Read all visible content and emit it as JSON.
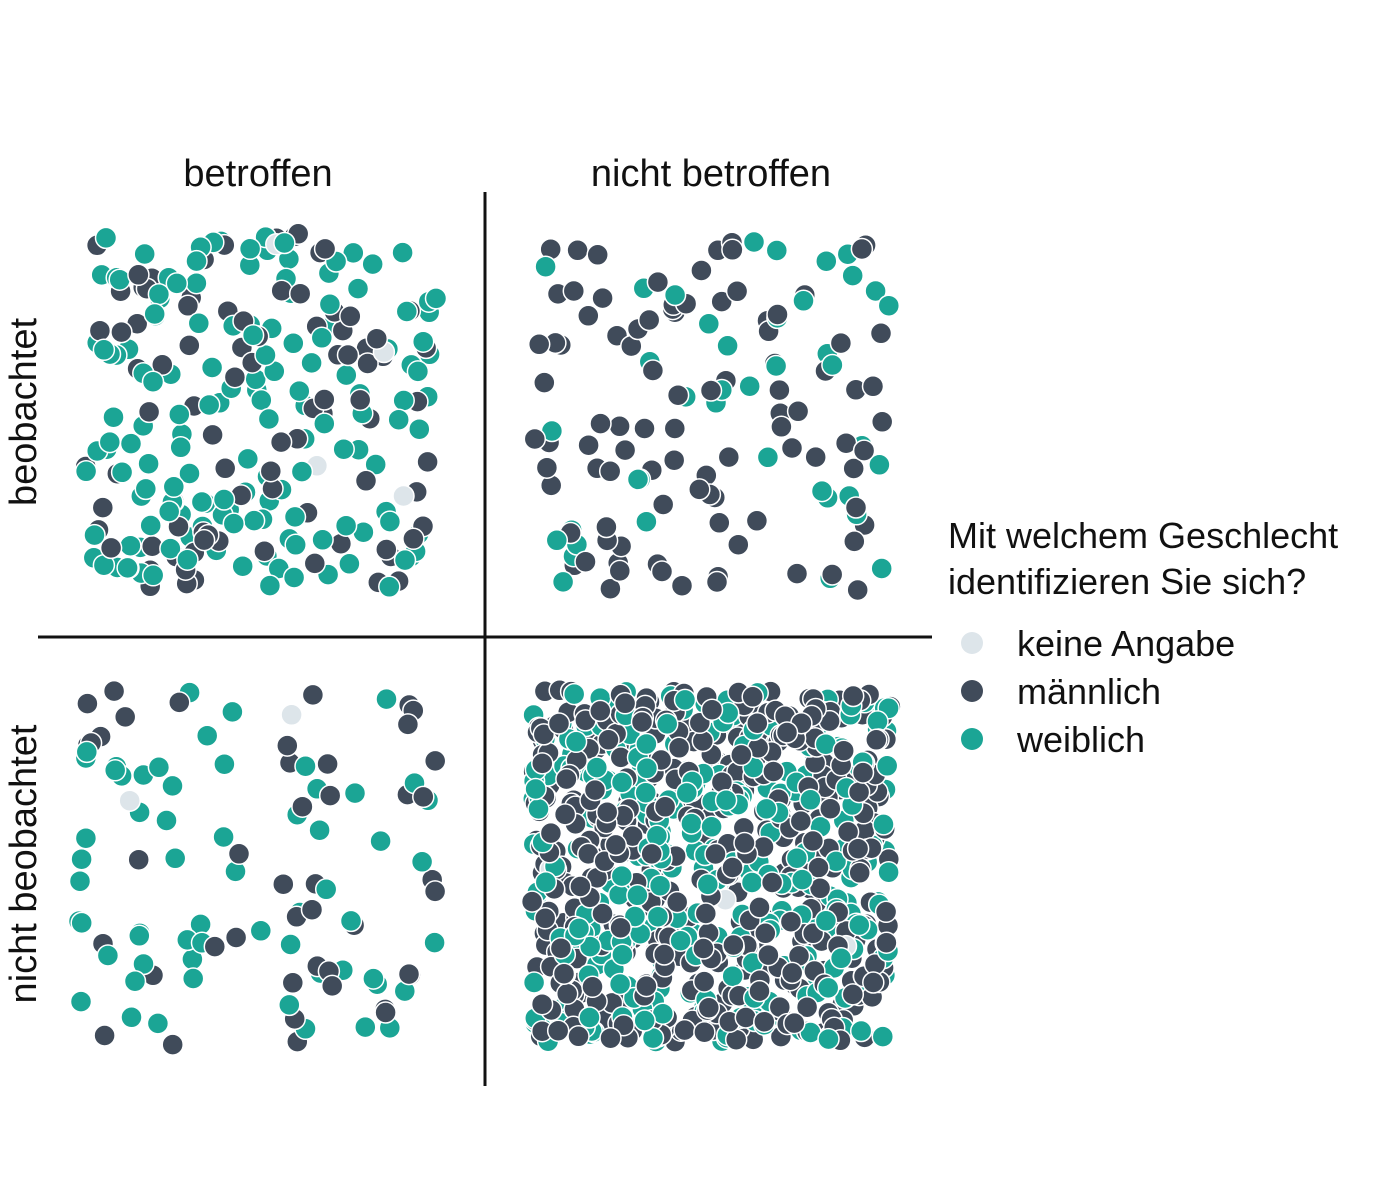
{
  "chart_data": {
    "type": "scatter",
    "description_kind": "unit-dot matrix (each dot = one respondent), 2x2 quadrants",
    "columns": [
      "betroffen",
      "nicht betroffen"
    ],
    "rows": [
      "beobachtet",
      "nicht beobachtet"
    ],
    "legend": {
      "title_lines": [
        "Mit welchem Geschlecht",
        "identifizieren Sie sich?"
      ],
      "placement": "right",
      "entries": [
        {
          "key": "keine_angabe",
          "label": "keine Angabe",
          "color": "#dde5ea"
        },
        {
          "key": "maennlich",
          "label": "männlich",
          "color": "#404b5a"
        },
        {
          "key": "weiblich",
          "label": "weiblich",
          "color": "#1ba595"
        }
      ]
    },
    "cells": [
      {
        "row": "beobachtet",
        "column": "betroffen",
        "counts": {
          "keine_angabe": 4,
          "maennlich": 90,
          "weiblich": 150
        }
      },
      {
        "row": "beobachtet",
        "column": "nicht betroffen",
        "counts": {
          "keine_angabe": 0,
          "maennlich": 95,
          "weiblich": 40
        }
      },
      {
        "row": "nicht beobachtet",
        "column": "betroffen",
        "counts": {
          "keine_angabe": 2,
          "maennlich": 45,
          "weiblich": 60
        }
      },
      {
        "row": "nicht beobachtet",
        "column": "nicht betroffen",
        "counts": {
          "keine_angabe": 3,
          "maennlich": 520,
          "weiblich": 330
        }
      }
    ],
    "grid": false
  }
}
